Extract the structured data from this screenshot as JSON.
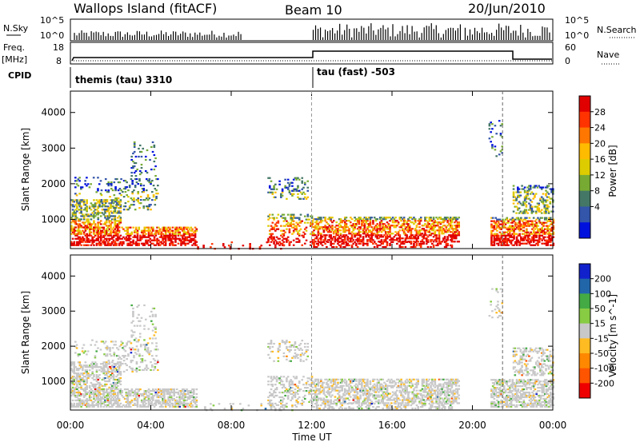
{
  "header": {
    "left_title": "Wallops Island (fitACF)",
    "center_title": "Beam 10",
    "right_title": "20/Jun/2010"
  },
  "top_panels": {
    "nsky_label": "N.Sky",
    "nsky_ticks": [
      "10^5",
      "10^0"
    ],
    "nsearch_label": "N.Search",
    "nsearch_ticks": [
      "10^5",
      "10^0"
    ],
    "freq_label": "Freq.",
    "freq_unit": "[MHz]",
    "freq_ticks": [
      "18",
      "8"
    ],
    "nave_label": "Nave",
    "nave_ticks": [
      "60",
      "0"
    ],
    "cpid_label": "CPID",
    "cpid_segments": [
      {
        "name": "themis (tau) 3310",
        "start_hour": 0,
        "end_hour": 12
      },
      {
        "name": "tau (fast) -503",
        "start_hour": 12,
        "end_hour": 24
      }
    ]
  },
  "chart_data": [
    {
      "type": "heatmap",
      "title": "Power",
      "ylabel": "Slant Range [km]",
      "colorbar_label": "Power [dB]",
      "colorbar_ticks": [
        "28",
        "24",
        "20",
        "16",
        "12",
        "8",
        "4"
      ],
      "colorbar_colors": [
        "#e00000",
        "#ff3300",
        "#ff7700",
        "#ffbb00",
        "#ddcc00",
        "#77aa33",
        "#447766",
        "#3355aa",
        "#0011dd"
      ],
      "ylim": [
        180,
        4600
      ],
      "yticks": [
        "4000",
        "3000",
        "2000",
        "1000"
      ],
      "ytick_values": [
        4000,
        3000,
        2000,
        1000
      ],
      "xlim_hours": [
        0,
        24
      ],
      "grid": false
    },
    {
      "type": "heatmap",
      "title": "Velocity",
      "ylabel": "Slant Range [km]",
      "colorbar_label": "Velocity [m s^-1]",
      "colorbar_ticks": [
        "200",
        "100",
        "50",
        "15",
        "-15",
        "-50",
        "-100",
        "-200"
      ],
      "colorbar_colors": [
        "#1122cc",
        "#2266aa",
        "#44aa44",
        "#88cc44",
        "#c8c8c8",
        "#ffbb22",
        "#ff8800",
        "#ff5500",
        "#ee0000"
      ],
      "ylim": [
        180,
        4600
      ],
      "yticks": [
        "4000",
        "3000",
        "2000",
        "1000"
      ],
      "ytick_values": [
        4000,
        3000,
        2000,
        1000
      ],
      "xlim_hours": [
        0,
        24
      ],
      "grid": false
    }
  ],
  "x_axis": {
    "label": "Time UT",
    "ticks": [
      "00:00",
      "04:00",
      "08:00",
      "12:00",
      "16:00",
      "20:00",
      "00:00"
    ],
    "tick_hours": [
      0,
      4,
      8,
      12,
      16,
      20,
      24
    ]
  }
}
